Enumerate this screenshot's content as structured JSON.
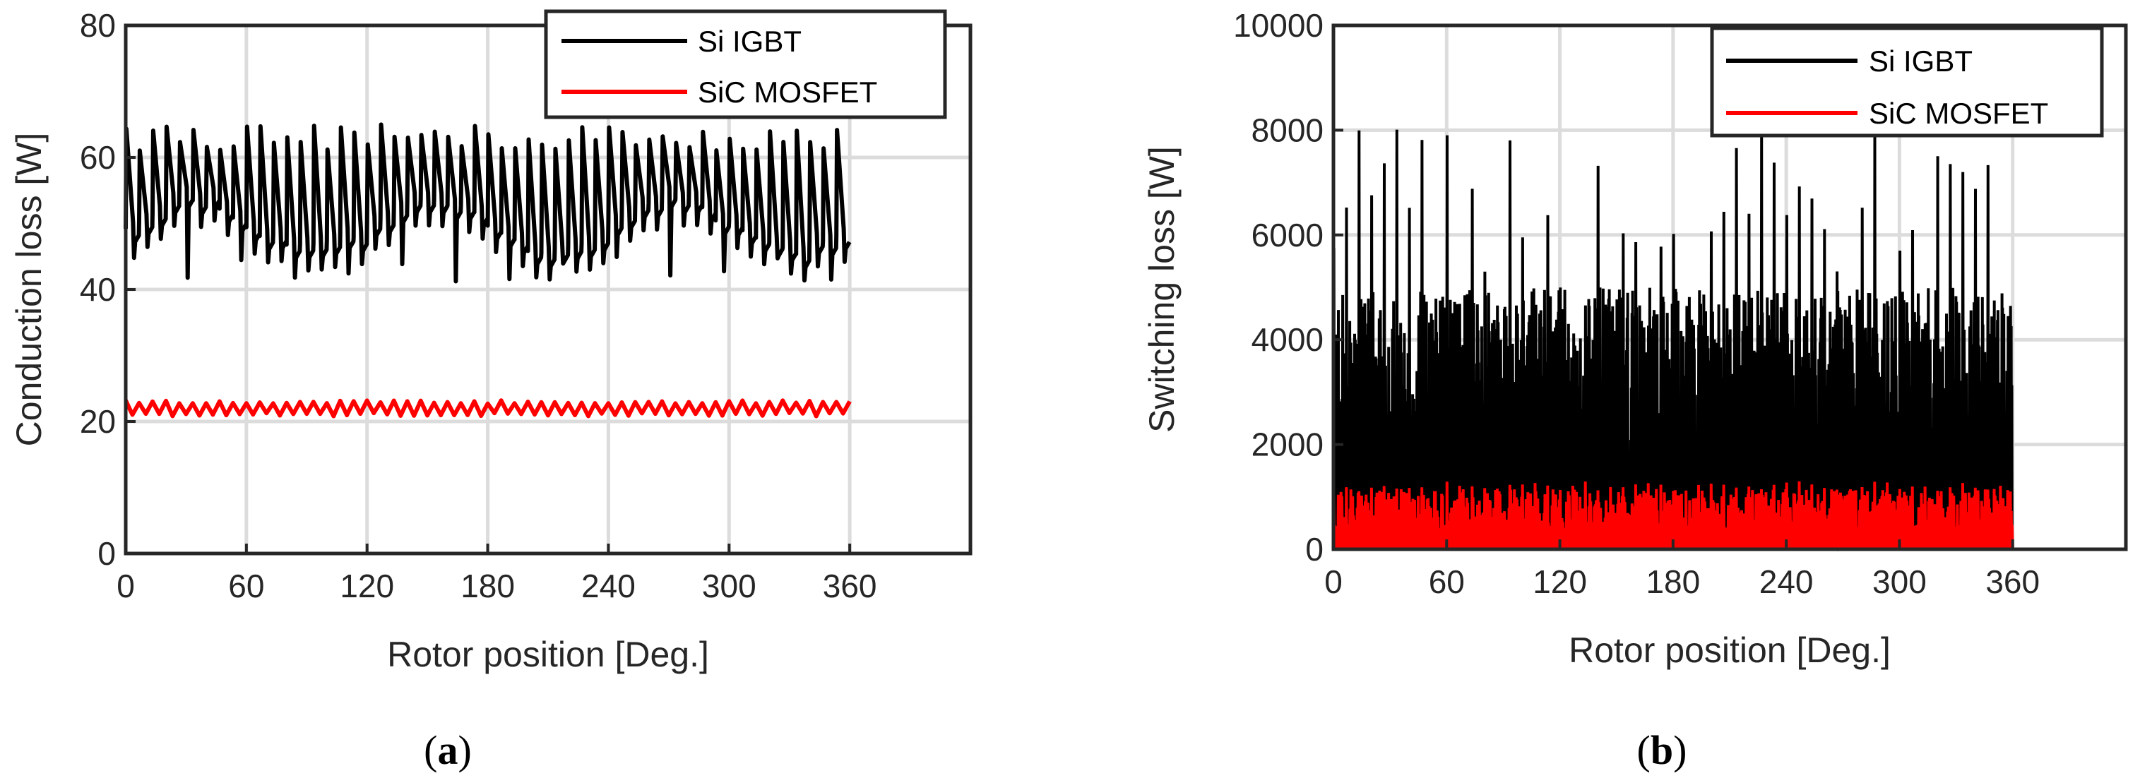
{
  "colors": {
    "si_igbt": "#000000",
    "sic_mosfet": "#ff0000"
  },
  "captions": [
    {
      "open": "(",
      "letter": "a",
      "close": ")"
    },
    {
      "open": "(",
      "letter": "b",
      "close": ")"
    }
  ],
  "chart_data": [
    {
      "type": "line",
      "xlabel": "Rotor position [Deg.]",
      "ylabel": "Conduction loss [W]",
      "xlim": [
        0,
        420
      ],
      "ylim": [
        0,
        80
      ],
      "xticks": [
        "0",
        "60",
        "120",
        "180",
        "240",
        "300",
        "360"
      ],
      "yticks": [
        "0",
        "20",
        "40",
        "60",
        "80"
      ],
      "grid": true,
      "legend_position": "top-right",
      "series": [
        {
          "name": "Si IGBT",
          "color": "#000000",
          "x_range": [
            0,
            360
          ],
          "pulses": 54,
          "baseline": 48,
          "peak": 63,
          "min": 41,
          "mean_band": [
            47,
            63
          ]
        },
        {
          "name": "SiC MOSFET",
          "color": "#ff0000",
          "x_range": [
            0,
            360
          ],
          "pulses": 54,
          "mean": 22,
          "band": [
            20.8,
            23.2
          ]
        }
      ]
    },
    {
      "type": "line",
      "xlabel": "Rotor position [Deg.]",
      "ylabel": "Switching loss [W]",
      "xlim": [
        0,
        420
      ],
      "ylim": [
        0,
        10000
      ],
      "xticks": [
        "0",
        "60",
        "120",
        "180",
        "240",
        "300",
        "360"
      ],
      "yticks": [
        "0",
        "2000",
        "4000",
        "6000",
        "8000",
        "10000"
      ],
      "grid": true,
      "legend_position": "top-right",
      "series": [
        {
          "name": "Si IGBT",
          "color": "#000000",
          "x_range": [
            0,
            360
          ],
          "pulses": 54,
          "peak_max": 8500,
          "envelope_typical": 5000,
          "min": 0
        },
        {
          "name": "SiC MOSFET",
          "color": "#ff0000",
          "x_range": [
            0,
            360
          ],
          "pulses": 54,
          "peak_max": 1300,
          "envelope_typical": 1150,
          "min": 0
        }
      ]
    }
  ]
}
